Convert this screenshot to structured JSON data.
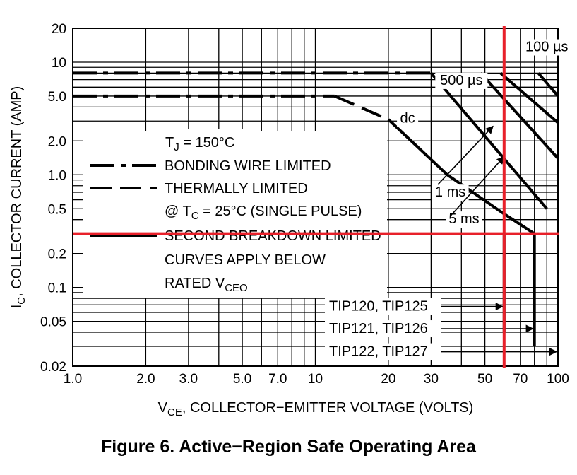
{
  "chart_data": {
    "type": "line",
    "title": "Figure 6. Active−Region Safe Operating Area",
    "x_scale": "log",
    "y_scale": "log",
    "xlim": [
      1,
      100
    ],
    "ylim": [
      0.02,
      20
    ],
    "xlabel_main": "V",
    "xlabel_sub": "CE",
    "xlabel_rest": ", COLLECTOR−EMITTER VOLTAGE (VOLTS)",
    "ylabel_main": "I",
    "ylabel_sub": "C",
    "ylabel_rest": ", COLLECTOR CURRENT (AMP)",
    "x_ticks": [
      {
        "value": 1,
        "label": "1.0"
      },
      {
        "value": 2,
        "label": "2.0"
      },
      {
        "value": 3,
        "label": "3.0"
      },
      {
        "value": 5,
        "label": "5.0"
      },
      {
        "value": 7,
        "label": "7.0"
      },
      {
        "value": 10,
        "label": "10"
      },
      {
        "value": 20,
        "label": "20"
      },
      {
        "value": 30,
        "label": "30"
      },
      {
        "value": 50,
        "label": "50"
      },
      {
        "value": 70,
        "label": "70"
      },
      {
        "value": 100,
        "label": "100"
      }
    ],
    "y_ticks": [
      {
        "value": 20,
        "label": "20"
      },
      {
        "value": 10,
        "label": "10"
      },
      {
        "value": 5,
        "label": "5.0"
      },
      {
        "value": 2,
        "label": "2.0"
      },
      {
        "value": 1,
        "label": "1.0"
      },
      {
        "value": 0.5,
        "label": "0.5"
      },
      {
        "value": 0.2,
        "label": "0.2"
      },
      {
        "value": 0.1,
        "label": "0.1"
      },
      {
        "value": 0.05,
        "label": "0.05"
      },
      {
        "value": 0.02,
        "label": "0.02"
      }
    ],
    "grid": true,
    "x_grid": [
      1,
      2,
      3,
      4,
      5,
      6,
      7,
      8,
      9,
      10,
      20,
      30,
      40,
      50,
      60,
      70,
      80,
      90,
      100
    ],
    "y_grid": [
      0.02,
      0.03,
      0.04,
      0.05,
      0.06,
      0.07,
      0.08,
      0.09,
      0.1,
      0.2,
      0.3,
      0.4,
      0.5,
      0.6,
      0.7,
      0.8,
      0.9,
      1,
      2,
      3,
      4,
      5,
      6,
      7,
      8,
      9,
      10,
      20
    ],
    "series": [
      {
        "name": "BONDING WIRE LIMITED",
        "style": "dashdot",
        "points": [
          [
            1,
            8
          ],
          [
            30,
            8
          ]
        ]
      },
      {
        "name": "BONDING WIRE LIMITED",
        "style": "dashdot",
        "points": [
          [
            1,
            5
          ],
          [
            12,
            5
          ]
        ]
      },
      {
        "name": "THERMALLY LIMITED",
        "style": "dash",
        "points": [
          [
            12,
            5
          ],
          [
            20,
            3.1
          ]
        ]
      },
      {
        "name": "SECOND BREAKDOWN LIMITED",
        "style": "solid",
        "label": "dc",
        "points": [
          [
            20,
            3.1
          ],
          [
            35,
            1.0
          ],
          [
            60,
            0.45
          ],
          [
            80,
            0.3
          ]
        ]
      },
      {
        "name": "",
        "style": "solid",
        "label": "5 ms",
        "points": [
          [
            30,
            8
          ],
          [
            90,
            0.5
          ]
        ]
      },
      {
        "name": "",
        "style": "solid",
        "label": "1 ms",
        "points": [
          [
            48,
            8
          ],
          [
            100,
            1.4
          ]
        ]
      },
      {
        "name": "",
        "style": "solid",
        "label": "500 µs",
        "points": [
          [
            58,
            8
          ],
          [
            100,
            2.9
          ]
        ]
      },
      {
        "name": "",
        "style": "solid",
        "label": "100 µs",
        "points": [
          [
            83,
            8
          ],
          [
            100,
            5
          ]
        ]
      },
      {
        "name": "TIP120, TIP125",
        "style": "solid",
        "points": [
          [
            60,
            0.3
          ],
          [
            60,
            0.04
          ]
        ]
      },
      {
        "name": "TIP121, TIP126",
        "style": "solid",
        "points": [
          [
            80,
            0.3
          ],
          [
            80,
            0.03
          ]
        ]
      },
      {
        "name": "TIP122, TIP127",
        "style": "solid",
        "points": [
          [
            100,
            0.3
          ],
          [
            100,
            0.024
          ]
        ]
      }
    ],
    "curve_labels": [
      {
        "text": "100 µs",
        "x": 90,
        "y": 12.5
      },
      {
        "text": "500 µs",
        "x": 40,
        "y": 6.3
      },
      {
        "text": "dc",
        "x": 24,
        "y": 2.9
      },
      {
        "text": "1 ms",
        "x": 36,
        "y": 0.64
      },
      {
        "text": "5 ms",
        "x": 41,
        "y": 0.37
      }
    ],
    "pointer_arrows": [
      {
        "label": "1 ms",
        "from": [
          32,
          0.82
        ],
        "to": [
          54,
          2.7
        ]
      },
      {
        "label": "5 ms",
        "from": [
          36,
          0.43
        ],
        "to": [
          60,
          1.45
        ]
      }
    ],
    "part_labels": [
      {
        "text": "TIP120, TIP125",
        "y": 0.063,
        "arrow_to_x": 60
      },
      {
        "text": "TIP121, TIP126",
        "y": 0.04,
        "arrow_to_x": 80
      },
      {
        "text": "TIP122, TIP127",
        "y": 0.025,
        "arrow_to_x": 100
      }
    ],
    "legend": {
      "position": "center-left",
      "tj": {
        "pre": "T",
        "sub": "J",
        "post": " = 150°C"
      },
      "entries": [
        {
          "style": "dashdot",
          "text": "BONDING WIRE LIMITED"
        },
        {
          "style": "dash",
          "text": "THERMALLY LIMITED"
        },
        {
          "style": "none",
          "pre": "@ T",
          "sub": "C",
          "post": " = 25°C (SINGLE PULSE)"
        },
        {
          "style": "solid",
          "text": "SECOND BREAKDOWN LIMITED"
        },
        {
          "style": "none",
          "text": "CURVES APPLY BELOW"
        },
        {
          "style": "none",
          "pre": "RATED V",
          "sub": "CEO",
          "post": ""
        }
      ]
    },
    "reference_lines": [
      {
        "orientation": "vertical",
        "value": 60,
        "color": "#e8202a"
      },
      {
        "orientation": "horizontal",
        "value": 0.3,
        "color": "#e8202a"
      }
    ]
  }
}
